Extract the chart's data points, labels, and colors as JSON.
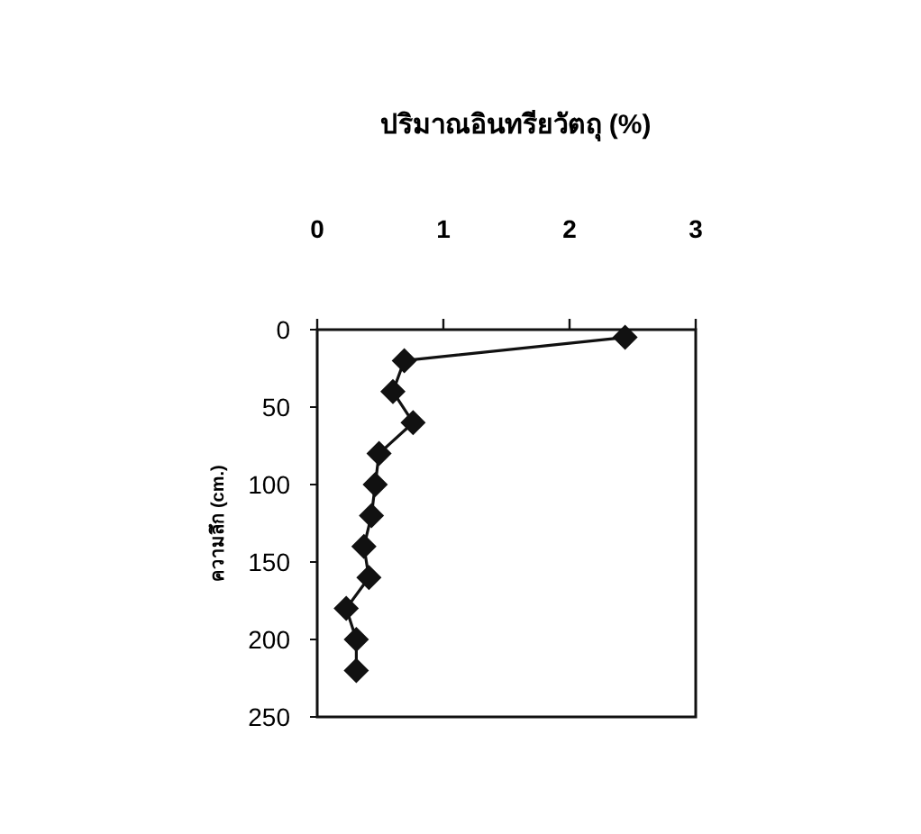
{
  "chart_data": {
    "type": "line",
    "title": "ปริมาณอินทรียวัตถุ (%)",
    "ylabel": "ความลึก (cm.)",
    "xlim": [
      0,
      3
    ],
    "xticks": [
      0,
      1,
      2,
      3
    ],
    "ylim": [
      250,
      0
    ],
    "yticks": [
      0,
      50,
      100,
      150,
      200,
      250
    ],
    "series": [
      {
        "color": "#111111",
        "x": [
          2.44,
          0.69,
          0.6,
          0.76,
          0.49,
          0.46,
          0.43,
          0.37,
          0.41,
          0.23,
          0.31,
          0.31
        ],
        "values": [
          5,
          20,
          40,
          60,
          80,
          100,
          120,
          140,
          160,
          180,
          200,
          220
        ]
      }
    ],
    "marker": "diamond",
    "line_style": "solid"
  }
}
